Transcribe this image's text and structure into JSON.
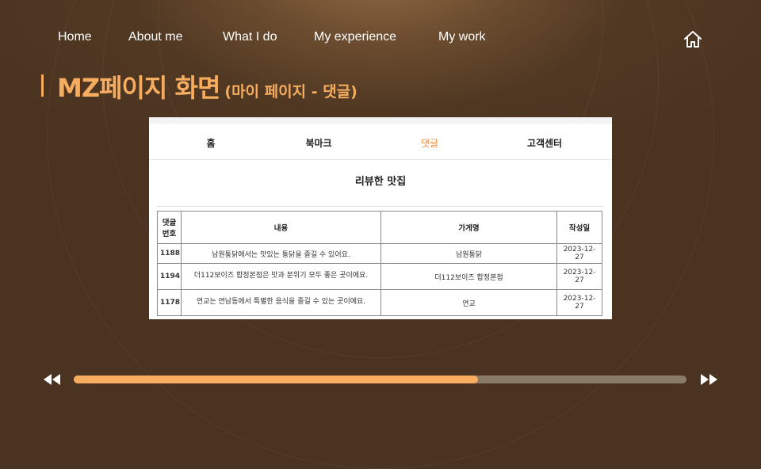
{
  "nav": {
    "items": [
      "Home",
      "About me",
      "What I do",
      "My experience",
      "My work"
    ],
    "home_icon": "home-icon"
  },
  "title": {
    "main": "MZ페이지 화면",
    "sub": "(마이 페이지 - 댓글)"
  },
  "screenshot": {
    "tabs": [
      {
        "label": "홈",
        "active": false
      },
      {
        "label": "북마크",
        "active": false
      },
      {
        "label": "댓글",
        "active": true
      },
      {
        "label": "고객센터",
        "active": false
      }
    ],
    "heading": "리뷰한 맛집",
    "table": {
      "headers": [
        "댓글\n번호",
        "내용",
        "가게명",
        "작성일"
      ],
      "rows": [
        {
          "id": "1188",
          "content": "남원통닭에서는 맛있는 통닭을 즐길 수 있어요.",
          "store": "남원통닭",
          "date": "2023-12-27"
        },
        {
          "id": "1194",
          "content": "더112보이즈 합정본점은 맛과 분위기 모두 좋은 곳이에요.",
          "store": "더112보이즈 합정본점",
          "date": "2023-12-27"
        },
        {
          "id": "1178",
          "content": "연교는 연남동에서 특별한 음식을 즐길 수 있는 곳이에요.",
          "store": "연교",
          "date": "2023-12-27"
        }
      ]
    }
  },
  "player": {
    "prev_icon": "rewind-icon",
    "next_icon": "fast-forward-icon",
    "progress": 0.66
  },
  "colors": {
    "accent": "#f7ad5f",
    "background": "#4a3320",
    "active_tab": "#f08a3c",
    "track": "#8a7a68"
  }
}
